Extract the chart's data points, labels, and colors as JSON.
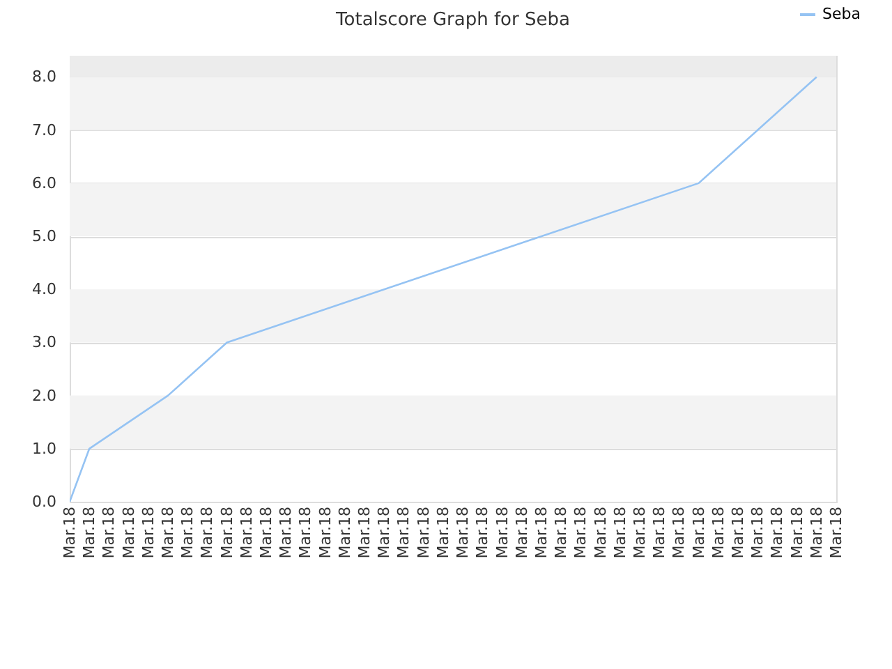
{
  "chart_data": {
    "type": "line",
    "title": "Totalscore Graph for Seba",
    "categories": [
      "Mar.18",
      "Mar.18",
      "Mar.18",
      "Mar.18",
      "Mar.18",
      "Mar.18",
      "Mar.18",
      "Mar.18",
      "Mar.18",
      "Mar.18",
      "Mar.18",
      "Mar.18",
      "Mar.18",
      "Mar.18",
      "Mar.18",
      "Mar.18",
      "Mar.18",
      "Mar.18",
      "Mar.18",
      "Mar.18",
      "Mar.18",
      "Mar.18",
      "Mar.18",
      "Mar.18",
      "Mar.18",
      "Mar.18",
      "Mar.18",
      "Mar.18",
      "Mar.18",
      "Mar.18",
      "Mar.18",
      "Mar.18",
      "Mar.18",
      "Mar.18",
      "Mar.18",
      "Mar.18",
      "Mar.18",
      "Mar.18",
      "Mar.18",
      "Mar.18"
    ],
    "series": [
      {
        "name": "Seba",
        "color": "#95c3f3",
        "values": [
          0,
          1,
          null,
          null,
          null,
          2,
          null,
          null,
          3,
          null,
          null,
          null,
          null,
          null,
          null,
          null,
          null,
          null,
          null,
          null,
          null,
          null,
          null,
          null,
          null,
          null,
          null,
          null,
          null,
          null,
          null,
          null,
          6,
          null,
          null,
          null,
          null,
          null,
          8,
          null
        ]
      }
    ],
    "ylim": [
      0,
      8.4
    ],
    "yticks": [
      {
        "value": 0,
        "label": "0.0"
      },
      {
        "value": 1,
        "label": "1.0"
      },
      {
        "value": 2,
        "label": "2.0"
      },
      {
        "value": 3,
        "label": "3.0"
      },
      {
        "value": 4,
        "label": "4.0"
      },
      {
        "value": 5,
        "label": "5.0"
      },
      {
        "value": 6,
        "label": "6.0"
      },
      {
        "value": 7,
        "label": "7.0"
      },
      {
        "value": 8,
        "label": "8.0"
      }
    ],
    "bands": [
      {
        "axis": "y",
        "from": 1,
        "to": 2,
        "color": "#f3f3f3"
      },
      {
        "axis": "y",
        "from": 3,
        "to": 4,
        "color": "#f3f3f3"
      },
      {
        "axis": "y",
        "from": 5,
        "to": 6,
        "color": "#f3f3f3"
      },
      {
        "axis": "y",
        "from": 7,
        "to": 8,
        "color": "#f3f3f3"
      },
      {
        "axis": "y",
        "from": 8,
        "to": 8.4,
        "color": "#ececec"
      }
    ],
    "grid": "y",
    "legend": "top right",
    "marker": "none",
    "line_style": "solid"
  }
}
